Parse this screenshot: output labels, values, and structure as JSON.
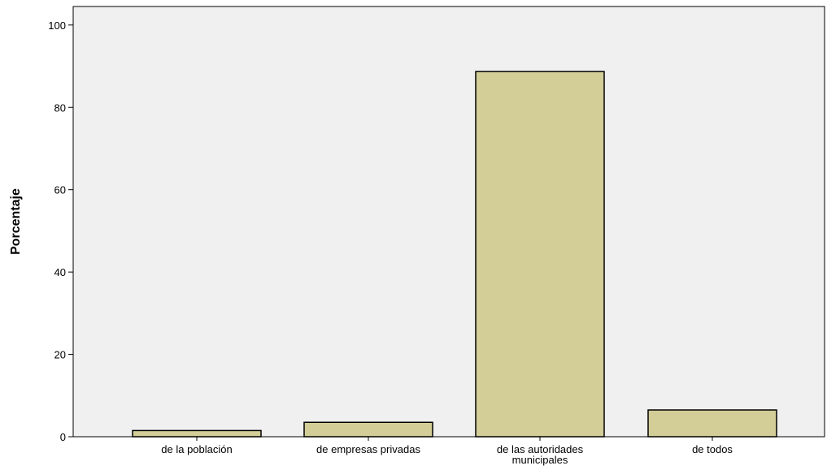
{
  "colors": {
    "plot_background": "#f0f0f0",
    "bar_fill": "#d3cd98",
    "bar_stroke": "#000000",
    "axis": "#000000"
  },
  "chart_data": {
    "type": "bar",
    "categories": [
      [
        "de la población"
      ],
      [
        "de empresas privadas"
      ],
      [
        "de las autoridades",
        "municipales"
      ],
      [
        "de todos"
      ]
    ],
    "values": [
      1.5,
      3.5,
      88.7,
      6.5
    ],
    "ylabel": "Porcentaje",
    "xlabel": "",
    "yticks": [
      0,
      20,
      40,
      60,
      80,
      100
    ],
    "ylim": [
      0,
      104.5
    ],
    "grid": false,
    "legend": "none"
  }
}
